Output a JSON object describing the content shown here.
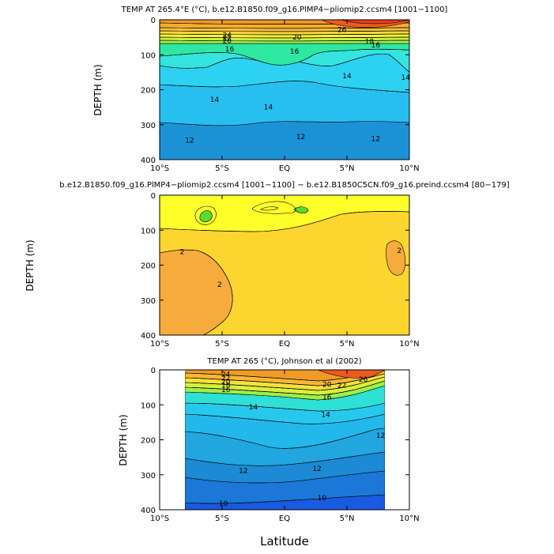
{
  "figure": {
    "xlabel": "Latitude"
  },
  "chart_data": [
    {
      "type": "contour",
      "title": "TEMP AT 265.4°E (°C), b.e12.B1850.f09_g16.PlMP4−pliomip2.ccsm4 [1001−1100]",
      "xlabel": "",
      "ylabel": "DEPTH (m)",
      "xlim": [
        -10,
        10
      ],
      "ylim": [
        400,
        0
      ],
      "x_ticks": [
        -10,
        -5,
        0,
        5,
        10
      ],
      "x_ticklabels": [
        "10°S",
        "5°S",
        "EQ",
        "5°N",
        "10°N"
      ],
      "y_ticks": [
        0,
        100,
        200,
        300,
        400
      ],
      "y_ticklabels": [
        "0",
        "100",
        "200",
        "300",
        "400"
      ],
      "contour_labels": [
        {
          "text": "26",
          "x": 4.6,
          "y": 28
        },
        {
          "text": "24",
          "x": -4.6,
          "y": 44
        },
        {
          "text": "22",
          "x": -4.6,
          "y": 52
        },
        {
          "text": "20",
          "x": -4.6,
          "y": 60
        },
        {
          "text": "20",
          "x": 1.0,
          "y": 50
        },
        {
          "text": "18",
          "x": 6.8,
          "y": 62
        },
        {
          "text": "16",
          "x": -4.4,
          "y": 84
        },
        {
          "text": "16",
          "x": 0.8,
          "y": 90
        },
        {
          "text": "16",
          "x": 7.3,
          "y": 72
        },
        {
          "text": "14",
          "x": 5.0,
          "y": 160
        },
        {
          "text": "14",
          "x": 9.7,
          "y": 165
        },
        {
          "text": "14",
          "x": -5.6,
          "y": 228
        },
        {
          "text": "14",
          "x": -1.3,
          "y": 250
        },
        {
          "text": "12",
          "x": -7.6,
          "y": 345
        },
        {
          "text": "12",
          "x": 1.3,
          "y": 335
        },
        {
          "text": "12",
          "x": 7.3,
          "y": 340
        }
      ]
    },
    {
      "type": "contour",
      "title": "b.e12.B1850.f09_g16.PlMP4−pliomip2.ccsm4 [1001−1100] − b.e12.B1850C5CN.f09_g16.preind.ccsm4 [80−179]",
      "xlabel": "",
      "ylabel": "DEPTH (m)",
      "xlim": [
        -10,
        10
      ],
      "ylim": [
        400,
        0
      ],
      "x_ticks": [
        -10,
        -5,
        0,
        5,
        10
      ],
      "x_ticklabels": [
        "10°S",
        "5°S",
        "EQ",
        "5°N",
        "10°N"
      ],
      "y_ticks": [
        0,
        100,
        200,
        300,
        400
      ],
      "y_ticklabels": [
        "0",
        "100",
        "200",
        "300",
        "400"
      ],
      "contour_labels": [
        {
          "text": "2",
          "x": -8.2,
          "y": 162
        },
        {
          "text": "2",
          "x": -5.2,
          "y": 255
        },
        {
          "text": "2",
          "x": 9.2,
          "y": 158
        }
      ]
    },
    {
      "type": "contour",
      "title": "TEMP AT 265 (°C), Johnson et al (2002)",
      "xlabel": "Latitude",
      "ylabel": "DEPTH (m)",
      "xlim": [
        -10,
        10
      ],
      "ylim": [
        400,
        0
      ],
      "x_ticks": [
        -10,
        -5,
        0,
        5,
        10
      ],
      "x_ticklabels": [
        "10°S",
        "5°S",
        "EQ",
        "5°N",
        "10°N"
      ],
      "y_ticks": [
        0,
        100,
        200,
        300,
        400
      ],
      "y_ticklabels": [
        "0",
        "100",
        "200",
        "300",
        "400"
      ],
      "contour_labels": [
        {
          "text": "24",
          "x": -4.7,
          "y": 12
        },
        {
          "text": "22",
          "x": -4.7,
          "y": 24
        },
        {
          "text": "20",
          "x": -4.7,
          "y": 34
        },
        {
          "text": "18",
          "x": -4.7,
          "y": 44
        },
        {
          "text": "16",
          "x": -4.7,
          "y": 56
        },
        {
          "text": "20",
          "x": 3.4,
          "y": 42
        },
        {
          "text": "22",
          "x": 4.6,
          "y": 44
        },
        {
          "text": "16",
          "x": 3.4,
          "y": 78
        },
        {
          "text": "26",
          "x": 6.3,
          "y": 27
        },
        {
          "text": "14",
          "x": -2.5,
          "y": 106
        },
        {
          "text": "14",
          "x": 3.3,
          "y": 128
        },
        {
          "text": "12",
          "x": 7.7,
          "y": 188
        },
        {
          "text": "12",
          "x": -3.3,
          "y": 288
        },
        {
          "text": "12",
          "x": 2.6,
          "y": 282
        },
        {
          "text": "10",
          "x": -4.9,
          "y": 382
        },
        {
          "text": "10",
          "x": 3.0,
          "y": 366
        }
      ]
    }
  ]
}
